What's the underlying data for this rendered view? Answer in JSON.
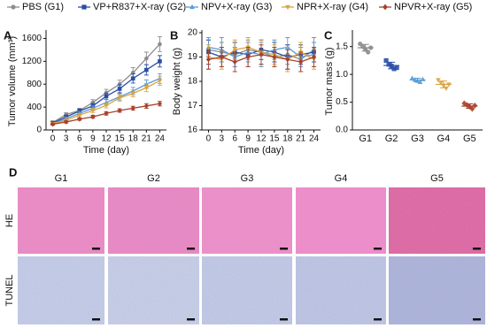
{
  "chart_data": [
    {
      "type": "line",
      "panel_label": "A",
      "x_label": "Time (day)",
      "y_label": "Tumor volume (mm³)",
      "x": [
        0,
        3,
        6,
        9,
        12,
        15,
        18,
        21,
        24
      ],
      "xlim": [
        -1.5,
        25.5
      ],
      "xticks": [
        0,
        3,
        6,
        9,
        12,
        15,
        18,
        21,
        24
      ],
      "ylim": [
        0,
        1700
      ],
      "yticks": [
        0,
        400,
        800,
        1200,
        1600
      ],
      "series": [
        {
          "name": "PBS (G1)",
          "color": "#8c8c8c",
          "marker": "circle",
          "values": [
            130,
            270,
            340,
            480,
            650,
            800,
            1000,
            1250,
            1500
          ],
          "errors": [
            30,
            30,
            40,
            50,
            60,
            70,
            90,
            110,
            130
          ]
        },
        {
          "name": "VP+R837+X-ray (G2)",
          "color": "#2a4ea6",
          "marker": "square",
          "values": [
            120,
            230,
            330,
            420,
            590,
            720,
            900,
            1050,
            1200
          ],
          "errors": [
            25,
            30,
            35,
            45,
            55,
            70,
            80,
            90,
            100
          ]
        },
        {
          "name": "NPV+X-ray (G3)",
          "color": "#5b9bd5",
          "marker": "triangle",
          "values": [
            110,
            200,
            290,
            380,
            480,
            580,
            680,
            800,
            900
          ],
          "errors": [
            20,
            25,
            30,
            40,
            50,
            55,
            65,
            75,
            85
          ]
        },
        {
          "name": "NPR+X-ray (G4)",
          "color": "#d9a441",
          "marker": "down",
          "values": [
            110,
            170,
            260,
            340,
            430,
            560,
            640,
            740,
            860
          ],
          "errors": [
            20,
            25,
            30,
            35,
            45,
            55,
            60,
            70,
            80
          ]
        },
        {
          "name": "NPVR+X-ray (G5)",
          "color": "#a8402c",
          "marker": "diamond",
          "values": [
            100,
            140,
            190,
            230,
            290,
            340,
            380,
            420,
            460
          ],
          "errors": [
            15,
            20,
            20,
            25,
            30,
            30,
            35,
            40,
            40
          ]
        }
      ]
    },
    {
      "type": "line",
      "panel_label": "B",
      "x_label": "Time (day)",
      "y_label": "Body weight (g)",
      "x": [
        0,
        3,
        6,
        9,
        12,
        15,
        18,
        21,
        24
      ],
      "xlim": [
        -1.5,
        25.5
      ],
      "xticks": [
        0,
        3,
        6,
        9,
        12,
        15,
        18,
        21,
        24
      ],
      "ylim": [
        16,
        20
      ],
      "yticks": [
        16,
        17,
        18,
        19,
        20
      ],
      "series": [
        {
          "color": "#8c8c8c",
          "marker": "circle",
          "values": [
            19.3,
            19.2,
            19.1,
            19.3,
            19.2,
            19.0,
            19.1,
            18.9,
            19.3
          ],
          "errors": [
            0.4,
            0.4,
            0.5,
            0.4,
            0.5,
            0.4,
            0.4,
            0.5,
            0.5
          ]
        },
        {
          "color": "#2a4ea6",
          "marker": "square",
          "values": [
            19.2,
            19.0,
            19.2,
            19.1,
            19.3,
            19.2,
            19.0,
            19.1,
            19.2
          ],
          "errors": [
            0.5,
            0.4,
            0.4,
            0.5,
            0.4,
            0.4,
            0.5,
            0.4,
            0.4
          ]
        },
        {
          "color": "#5b9bd5",
          "marker": "triangle",
          "values": [
            19.4,
            19.3,
            19.0,
            19.2,
            19.1,
            19.3,
            19.4,
            19.0,
            19.1
          ],
          "errors": [
            0.4,
            0.5,
            0.4,
            0.4,
            0.5,
            0.4,
            0.4,
            0.4,
            0.5
          ]
        },
        {
          "color": "#d9a441",
          "marker": "down",
          "values": [
            19.0,
            18.9,
            19.3,
            19.4,
            19.2,
            19.1,
            18.9,
            19.2,
            18.9
          ],
          "errors": [
            0.5,
            0.4,
            0.4,
            0.4,
            0.5,
            0.4,
            0.5,
            0.4,
            0.4
          ]
        },
        {
          "color": "#a8402c",
          "marker": "diamond",
          "values": [
            18.9,
            19.0,
            18.8,
            19.0,
            19.1,
            19.0,
            18.9,
            18.8,
            19.0
          ],
          "errors": [
            0.4,
            0.4,
            0.4,
            0.4,
            0.4,
            0.4,
            0.4,
            0.4,
            0.4
          ]
        }
      ]
    },
    {
      "type": "scatter",
      "panel_label": "C",
      "y_label": "Tumor mass (g)",
      "categories": [
        "G1",
        "G2",
        "G3",
        "G4",
        "G5"
      ],
      "ylim": [
        0,
        1.75
      ],
      "yticks": [
        {
          "value": 0,
          "label": "0.0"
        },
        0.5,
        {
          "value": 1,
          "label": "1.0"
        },
        1.5
      ],
      "means": [
        1.48,
        1.16,
        0.9,
        0.82,
        0.43
      ],
      "errors": [
        0.06,
        0.06,
        0.03,
        0.06,
        0.04
      ],
      "series": [
        {
          "color": "#8c8c8c",
          "marker": "circle",
          "values": [
            1.55,
            1.5,
            1.45,
            1.4,
            1.48
          ]
        },
        {
          "color": "#2a4ea6",
          "marker": "square",
          "values": [
            1.25,
            1.18,
            1.15,
            1.1,
            1.12
          ]
        },
        {
          "color": "#5b9bd5",
          "marker": "triangle",
          "values": [
            0.93,
            0.9,
            0.88,
            0.86,
            0.91
          ]
        },
        {
          "color": "#d9a441",
          "marker": "down",
          "values": [
            0.9,
            0.85,
            0.8,
            0.75,
            0.82
          ]
        },
        {
          "color": "#a8402c",
          "marker": "diamond",
          "values": [
            0.48,
            0.45,
            0.42,
            0.38,
            0.44
          ]
        }
      ]
    }
  ],
  "panel_d": {
    "label": "D",
    "columns": [
      "G1",
      "G2",
      "G3",
      "G4",
      "G5"
    ],
    "rows": [
      "HE",
      "TUNEL"
    ]
  }
}
